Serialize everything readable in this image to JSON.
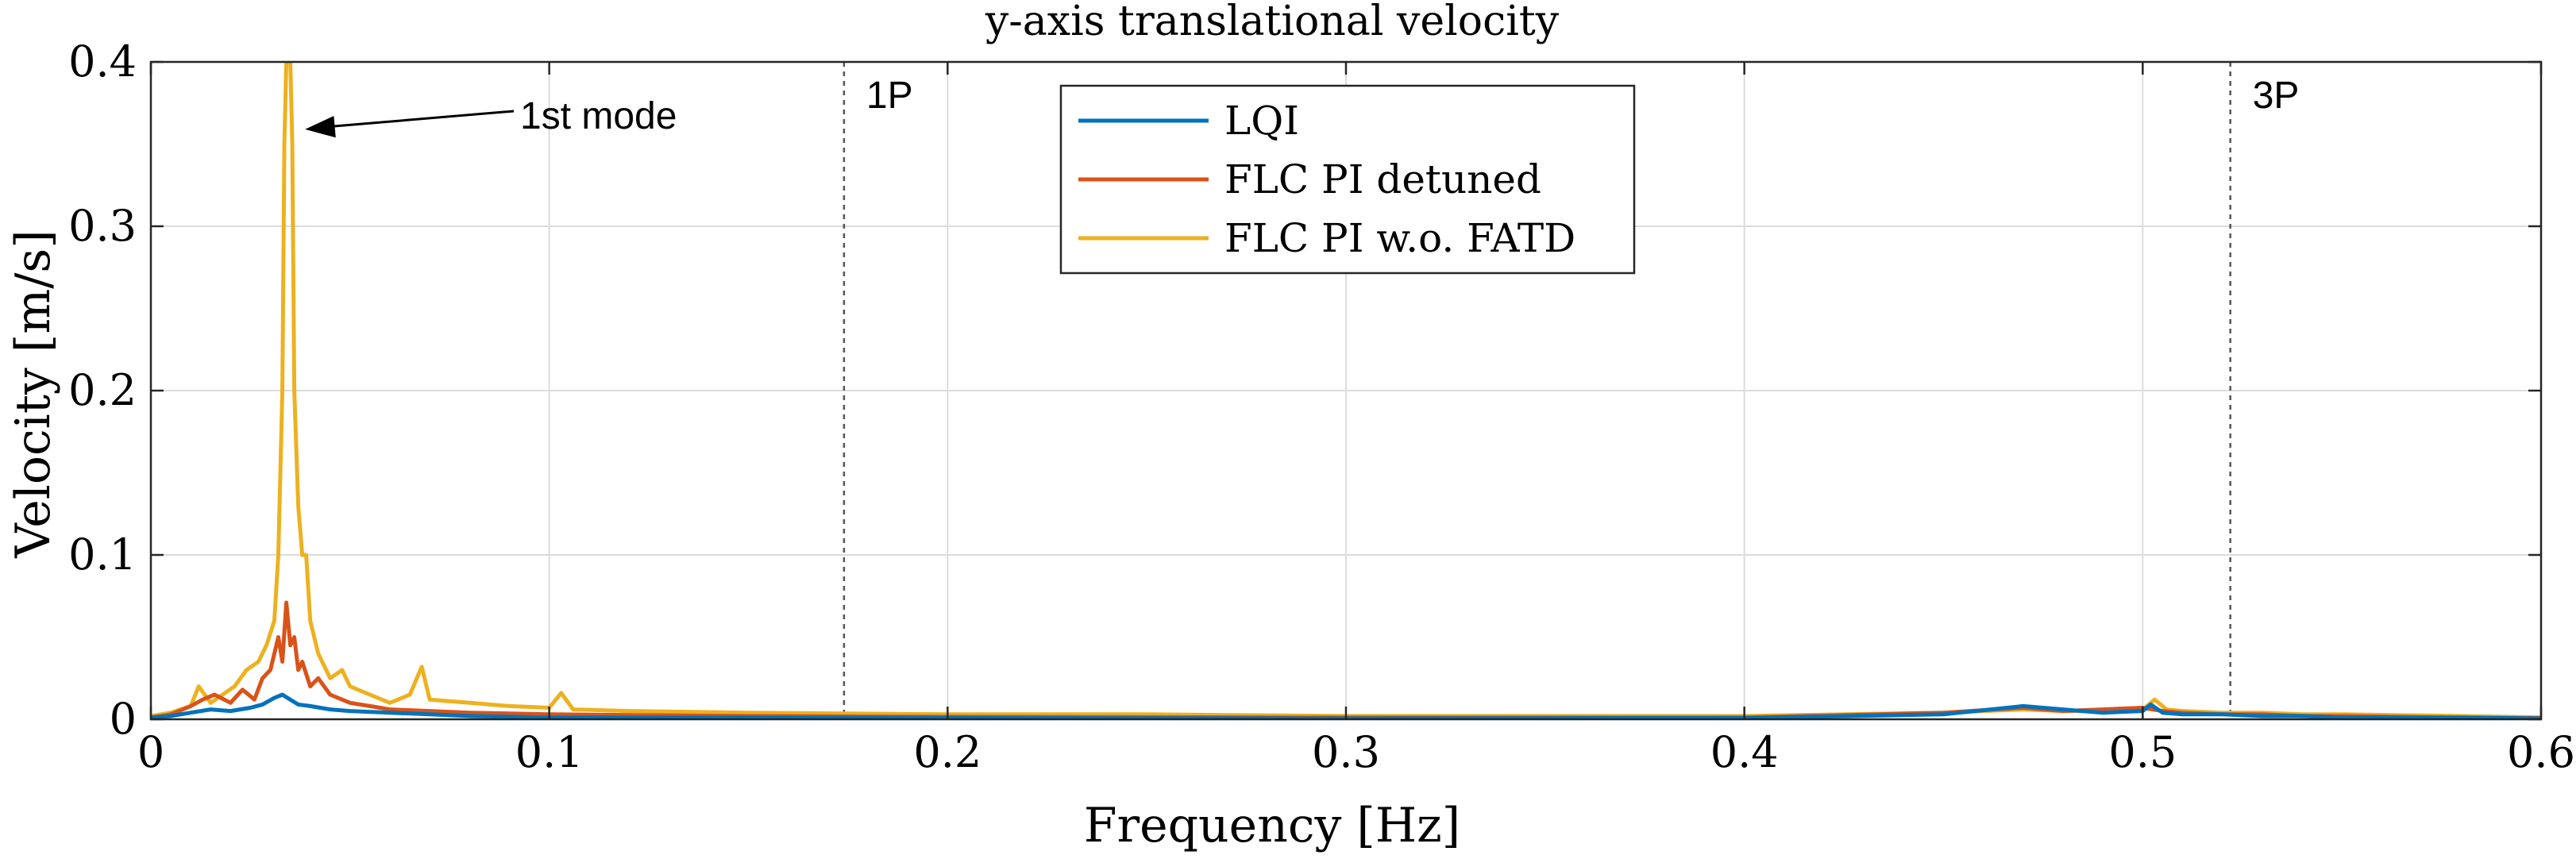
{
  "chart_data": {
    "type": "line",
    "title": "y-axis translational velocity",
    "xlabel": "Frequency [Hz]",
    "ylabel": "Velocity [m/s]",
    "xlim": [
      0,
      0.6
    ],
    "ylim": [
      0,
      0.4
    ],
    "xticks": [
      "0",
      "0.1",
      "0.2",
      "0.3",
      "0.4",
      "0.5",
      "0.6"
    ],
    "yticks": [
      "0",
      "0.1",
      "0.2",
      "0.3",
      "0.4"
    ],
    "grid": true,
    "legend_position": "top-center",
    "vlines": [
      {
        "x": 0.174,
        "label": "1P",
        "style": "dotted"
      },
      {
        "x": 0.522,
        "label": "3P",
        "style": "dotted"
      }
    ],
    "annotations": [
      {
        "text": "1st mode",
        "arrow_to": [
          0.0387,
          0.359
        ]
      }
    ],
    "series": [
      {
        "name": "LQI",
        "color": "#0072BD",
        "x": [
          0,
          0.005,
          0.01,
          0.015,
          0.02,
          0.025,
          0.028,
          0.031,
          0.033,
          0.035,
          0.037,
          0.04,
          0.045,
          0.05,
          0.06,
          0.07,
          0.08,
          0.1,
          0.15,
          0.2,
          0.3,
          0.4,
          0.45,
          0.47,
          0.48,
          0.49,
          0.5,
          0.502,
          0.505,
          0.51,
          0.52,
          0.53,
          0.54,
          0.55,
          0.58,
          0.6
        ],
        "y": [
          0.001,
          0.002,
          0.004,
          0.006,
          0.005,
          0.007,
          0.009,
          0.013,
          0.015,
          0.012,
          0.009,
          0.008,
          0.006,
          0.005,
          0.004,
          0.003,
          0.002,
          0.001,
          0.001,
          0.0008,
          0.0005,
          0.0008,
          0.003,
          0.008,
          0.006,
          0.004,
          0.005,
          0.009,
          0.004,
          0.003,
          0.003,
          0.002,
          0.002,
          0.001,
          0.001,
          0.0005
        ]
      },
      {
        "name": "FLC PI detuned",
        "color": "#D95319",
        "x": [
          0,
          0.005,
          0.01,
          0.013,
          0.016,
          0.02,
          0.023,
          0.026,
          0.028,
          0.03,
          0.032,
          0.033,
          0.034,
          0.035,
          0.036,
          0.037,
          0.038,
          0.04,
          0.042,
          0.045,
          0.048,
          0.05,
          0.055,
          0.06,
          0.07,
          0.08,
          0.1,
          0.15,
          0.2,
          0.3,
          0.4,
          0.45,
          0.47,
          0.48,
          0.49,
          0.5,
          0.505,
          0.51,
          0.52,
          0.53,
          0.54,
          0.55,
          0.58,
          0.6
        ],
        "y": [
          0.001,
          0.003,
          0.008,
          0.012,
          0.015,
          0.01,
          0.018,
          0.012,
          0.025,
          0.03,
          0.05,
          0.035,
          0.071,
          0.045,
          0.05,
          0.03,
          0.035,
          0.02,
          0.025,
          0.015,
          0.012,
          0.01,
          0.008,
          0.006,
          0.005,
          0.004,
          0.003,
          0.002,
          0.0015,
          0.001,
          0.001,
          0.004,
          0.007,
          0.005,
          0.006,
          0.007,
          0.005,
          0.004,
          0.003,
          0.003,
          0.002,
          0.002,
          0.001,
          0.0008
        ]
      },
      {
        "name": "FLC PI w.o. FATD",
        "color": "#EDB120",
        "x": [
          0,
          0.005,
          0.01,
          0.012,
          0.015,
          0.018,
          0.021,
          0.024,
          0.027,
          0.029,
          0.031,
          0.032,
          0.033,
          0.0335,
          0.034,
          0.0345,
          0.035,
          0.0355,
          0.036,
          0.037,
          0.038,
          0.039,
          0.04,
          0.042,
          0.045,
          0.048,
          0.05,
          0.055,
          0.06,
          0.065,
          0.068,
          0.07,
          0.08,
          0.09,
          0.1,
          0.103,
          0.106,
          0.12,
          0.15,
          0.2,
          0.25,
          0.3,
          0.35,
          0.4,
          0.45,
          0.47,
          0.48,
          0.49,
          0.5,
          0.503,
          0.506,
          0.51,
          0.52,
          0.53,
          0.54,
          0.55,
          0.58,
          0.6
        ],
        "y": [
          0.002,
          0.004,
          0.008,
          0.02,
          0.01,
          0.015,
          0.02,
          0.03,
          0.035,
          0.045,
          0.06,
          0.1,
          0.2,
          0.35,
          0.4,
          0.4,
          0.4,
          0.35,
          0.2,
          0.13,
          0.1,
          0.1,
          0.06,
          0.04,
          0.025,
          0.03,
          0.02,
          0.015,
          0.01,
          0.015,
          0.032,
          0.012,
          0.01,
          0.008,
          0.007,
          0.016,
          0.006,
          0.005,
          0.004,
          0.003,
          0.003,
          0.002,
          0.002,
          0.002,
          0.004,
          0.006,
          0.005,
          0.005,
          0.006,
          0.012,
          0.006,
          0.005,
          0.004,
          0.004,
          0.003,
          0.003,
          0.002,
          0.001
        ]
      }
    ]
  }
}
